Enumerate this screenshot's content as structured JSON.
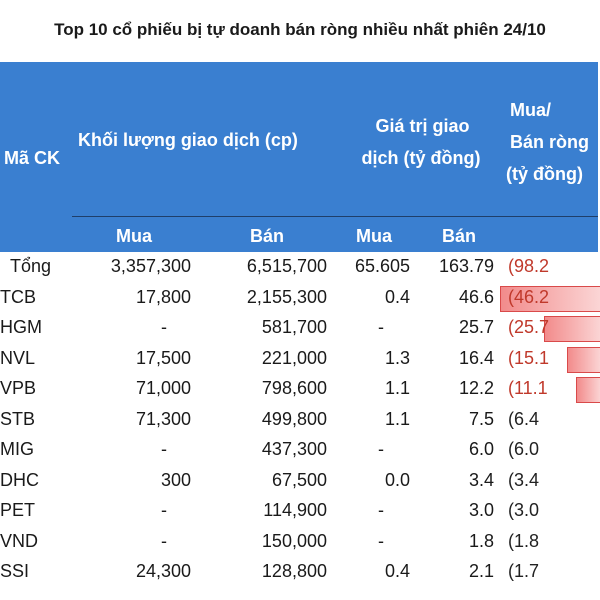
{
  "title": "Top 10 cổ phiếu bị tự doanh bán ròng nhiều nhất phiên 24/10",
  "header": {
    "code": "Mã CK",
    "volume": "Khối lượng giao dịch (cp)",
    "value_line1": "Giá trị giao",
    "value_line2": "dịch (tỷ đồng)",
    "net_line1": "Mua/",
    "net_line2": "Bán ròng",
    "net_line3": "(tỷ đồng)",
    "buy_vol": "Mua",
    "sell_vol": "Bán",
    "buy_val": "Mua",
    "sell_val": "Bán"
  },
  "rows": [
    {
      "code": "Tổng",
      "buy_vol": "3,357,300",
      "sell_vol": "6,515,700",
      "buy_val": "65.605",
      "sell_val": "163.79",
      "net": "(98.2",
      "net_value": -98.2
    },
    {
      "code": "TCB",
      "buy_vol": "17,800",
      "sell_vol": "2,155,300",
      "buy_val": "0.4",
      "sell_val": "46.6",
      "net": "(46.2",
      "net_value": -46.2
    },
    {
      "code": "HGM",
      "buy_vol": "-",
      "sell_vol": "581,700",
      "buy_val": "-",
      "sell_val": "25.7",
      "net": "(25.7",
      "net_value": -25.7
    },
    {
      "code": "NVL",
      "buy_vol": "17,500",
      "sell_vol": "221,000",
      "buy_val": "1.3",
      "sell_val": "16.4",
      "net": "(15.1",
      "net_value": -15.1
    },
    {
      "code": "VPB",
      "buy_vol": "71,000",
      "sell_vol": "798,600",
      "buy_val": "1.1",
      "sell_val": "12.2",
      "net": "(11.1",
      "net_value": -11.1
    },
    {
      "code": "STB",
      "buy_vol": "71,300",
      "sell_vol": "499,800",
      "buy_val": "1.1",
      "sell_val": "7.5",
      "net": "(6.4",
      "net_value": -6.4
    },
    {
      "code": "MIG",
      "buy_vol": "-",
      "sell_vol": "437,300",
      "buy_val": "-",
      "sell_val": "6.0",
      "net": "(6.0",
      "net_value": -6.0
    },
    {
      "code": "DHC",
      "buy_vol": "300",
      "sell_vol": "67,500",
      "buy_val": "0.0",
      "sell_val": "3.4",
      "net": "(3.4",
      "net_value": -3.4
    },
    {
      "code": "PET",
      "buy_vol": "-",
      "sell_vol": "114,900",
      "buy_val": "-",
      "sell_val": "3.0",
      "net": "(3.0",
      "net_value": -3.0
    },
    {
      "code": "VND",
      "buy_vol": "-",
      "sell_vol": "150,000",
      "buy_val": "-",
      "sell_val": "1.8",
      "net": "(1.8",
      "net_value": -1.8
    },
    {
      "code": "SSI",
      "buy_vol": "24,300",
      "sell_vol": "128,800",
      "buy_val": "0.4",
      "sell_val": "2.1",
      "net": "(1.7",
      "net_value": -1.7
    }
  ],
  "colors": {
    "header_bg": "#3a7fd0",
    "negative": "#c0392b",
    "bar_fill": "#f28b8b"
  }
}
